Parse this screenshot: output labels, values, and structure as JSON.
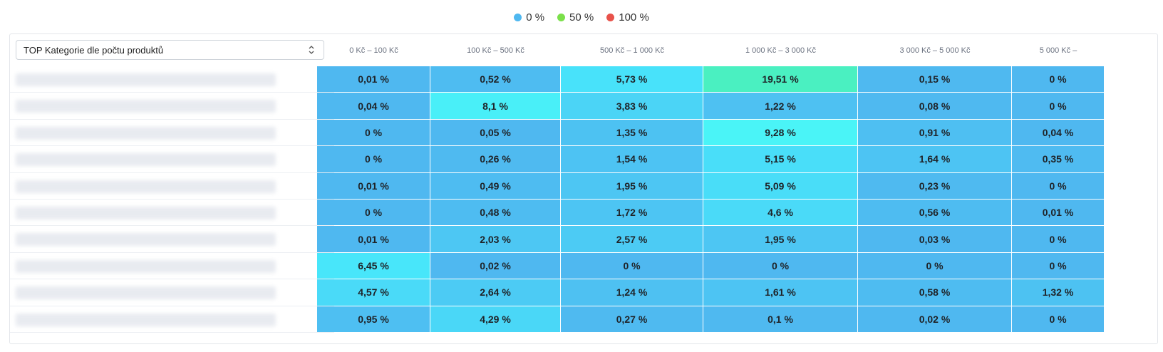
{
  "legend": [
    {
      "label": "0 %",
      "color": "#4fb8f0"
    },
    {
      "label": "50 %",
      "color": "#7be04a"
    },
    {
      "label": "100 %",
      "color": "#e8524a"
    }
  ],
  "selector": {
    "label": "TOP Kategorie dle počtu produktů"
  },
  "chart_data": {
    "type": "heatmap",
    "columns": [
      "0 Kč – 100 Kč",
      "100 Kč – 500 Kč",
      "500 Kč – 1 000 Kč",
      "1 000 Kč – 3 000 Kč",
      "3 000 Kč – 5 000 Kč",
      "5 000 Kč –"
    ],
    "row_labels": [
      "",
      "",
      "",
      "",
      "",
      "",
      "",
      "",
      "",
      ""
    ],
    "values": [
      [
        0.01,
        0.52,
        5.73,
        19.51,
        0.15,
        0
      ],
      [
        0.04,
        8.1,
        3.83,
        1.22,
        0.08,
        0
      ],
      [
        0,
        0.05,
        1.35,
        9.28,
        0.91,
        0.04
      ],
      [
        0,
        0.26,
        1.54,
        5.15,
        1.64,
        0.35
      ],
      [
        0.01,
        0.49,
        1.95,
        5.09,
        0.23,
        0
      ],
      [
        0,
        0.48,
        1.72,
        4.6,
        0.56,
        0.01
      ],
      [
        0.01,
        2.03,
        2.57,
        1.95,
        0.03,
        0
      ],
      [
        6.45,
        0.02,
        0,
        0,
        0,
        0
      ],
      [
        4.57,
        2.64,
        1.24,
        1.61,
        0.58,
        1.32
      ],
      [
        0.95,
        4.29,
        0.27,
        0.1,
        0.02,
        0
      ]
    ],
    "labels": [
      [
        "0,01 %",
        "0,52 %",
        "5,73 %",
        "19,51 %",
        "0,15 %",
        "0 %"
      ],
      [
        "0,04 %",
        "8,1 %",
        "3,83 %",
        "1,22 %",
        "0,08 %",
        "0 %"
      ],
      [
        "0 %",
        "0,05 %",
        "1,35 %",
        "9,28 %",
        "0,91 %",
        "0,04 %"
      ],
      [
        "0 %",
        "0,26 %",
        "1,54 %",
        "5,15 %",
        "1,64 %",
        "0,35 %"
      ],
      [
        "0,01 %",
        "0,49 %",
        "1,95 %",
        "5,09 %",
        "0,23 %",
        "0 %"
      ],
      [
        "0 %",
        "0,48 %",
        "1,72 %",
        "4,6 %",
        "0,56 %",
        "0,01 %"
      ],
      [
        "0,01 %",
        "2,03 %",
        "2,57 %",
        "1,95 %",
        "0,03 %",
        "0 %"
      ],
      [
        "6,45 %",
        "0,02 %",
        "0 %",
        "0 %",
        "0 %",
        "0 %"
      ],
      [
        "4,57 %",
        "2,64 %",
        "1,24 %",
        "1,61 %",
        "0,58 %",
        "1,32 %"
      ],
      [
        "0,95 %",
        "4,29 %",
        "0,27 %",
        "0,1 %",
        "0,02 %",
        "0 %"
      ]
    ],
    "scale": {
      "min": 0,
      "mid": 50,
      "max": 100,
      "colors": [
        "#4fb8f0",
        "#7be04a",
        "#e8524a"
      ]
    },
    "legend_position": "top-center"
  }
}
